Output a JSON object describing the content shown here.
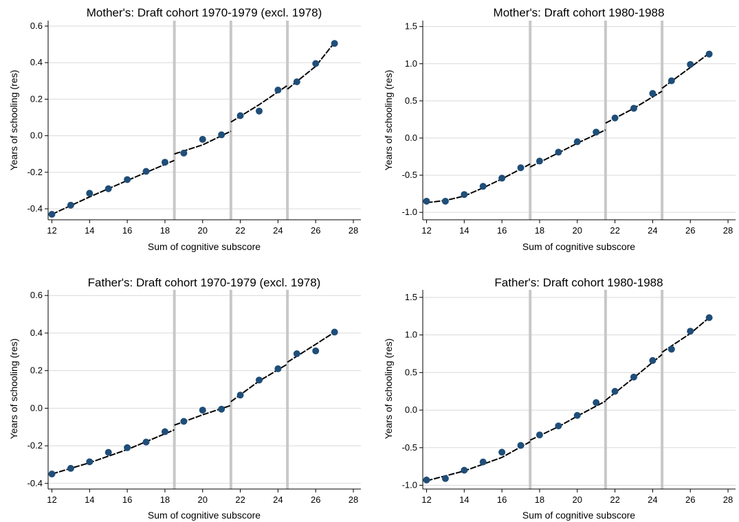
{
  "colors": {
    "marker": "#1f4e79",
    "fit_line": "#000000",
    "cutoff_line": "#c8c8c8",
    "grid": "#d9d9d9"
  },
  "chart_data": [
    {
      "type": "scatter",
      "title": "Mother's: Draft cohort 1970-1979 (excl. 1978)",
      "xlabel": "Sum of cognitive subscore",
      "ylabel": "Years of schooling (res)",
      "xlim": [
        11.8,
        28.4
      ],
      "ylim": [
        -0.46,
        0.63
      ],
      "xticks": [
        12,
        14,
        16,
        18,
        20,
        22,
        24,
        26,
        28
      ],
      "yticks": [
        -0.4,
        -0.2,
        0.0,
        0.2,
        0.4,
        0.6
      ],
      "ytick_labels": [
        "-0.4",
        "-0.2",
        "0.0",
        "0.2",
        "0.4",
        "0.6"
      ],
      "cutoffs": [
        18.5,
        21.5,
        24.5
      ],
      "grid": true,
      "x": [
        12,
        13,
        14,
        15,
        16,
        17,
        18,
        19,
        20,
        21,
        22,
        23,
        24,
        25,
        26,
        27
      ],
      "y": [
        -0.43,
        -0.38,
        -0.315,
        -0.29,
        -0.24,
        -0.195,
        -0.145,
        -0.095,
        -0.02,
        0.005,
        0.11,
        0.135,
        0.25,
        0.295,
        0.395,
        0.505
      ],
      "fit_segments": [
        [
          [
            12,
            -0.43
          ],
          [
            14,
            -0.335
          ],
          [
            16,
            -0.245
          ],
          [
            18.5,
            -0.135
          ]
        ],
        [
          [
            18.5,
            -0.1
          ],
          [
            20,
            -0.05
          ],
          [
            21.5,
            0.025
          ]
        ],
        [
          [
            21.5,
            0.075
          ],
          [
            23,
            0.17
          ],
          [
            24.5,
            0.275
          ]
        ],
        [
          [
            24.5,
            0.255
          ],
          [
            26,
            0.38
          ],
          [
            27,
            0.51
          ]
        ]
      ]
    },
    {
      "type": "scatter",
      "title": "Mother's: Draft cohort 1980-1988",
      "xlabel": "Sum of cognitive subscore",
      "ylabel": "Years of schooling (res)",
      "xlim": [
        11.8,
        28.4
      ],
      "ylim": [
        -1.1,
        1.58
      ],
      "xticks": [
        12,
        14,
        16,
        18,
        20,
        22,
        24,
        26,
        28
      ],
      "yticks": [
        -1.0,
        -0.5,
        0.0,
        0.5,
        1.0,
        1.5
      ],
      "ytick_labels": [
        "-1.0",
        "-0.5",
        "0.0",
        "0.5",
        "1.0",
        "1.5"
      ],
      "cutoffs": [
        17.5,
        21.5,
        24.5
      ],
      "grid": true,
      "x": [
        12,
        13,
        14,
        15,
        16,
        17,
        18,
        19,
        20,
        21,
        22,
        23,
        24,
        25,
        26,
        27
      ],
      "y": [
        -0.85,
        -0.85,
        -0.76,
        -0.65,
        -0.54,
        -0.4,
        -0.31,
        -0.19,
        -0.05,
        0.08,
        0.27,
        0.4,
        0.6,
        0.77,
        0.99,
        1.13
      ],
      "fit_segments": [
        [
          [
            12,
            -0.87
          ],
          [
            13,
            -0.84
          ],
          [
            14,
            -0.78
          ],
          [
            15,
            -0.67
          ],
          [
            16,
            -0.55
          ],
          [
            17.5,
            -0.35
          ]
        ],
        [
          [
            17.5,
            -0.39
          ],
          [
            19,
            -0.2
          ],
          [
            20,
            -0.07
          ],
          [
            21.5,
            0.11
          ]
        ],
        [
          [
            21.5,
            0.2
          ],
          [
            23,
            0.4
          ],
          [
            24.5,
            0.63
          ]
        ],
        [
          [
            24.5,
            0.67
          ],
          [
            26,
            0.95
          ],
          [
            27,
            1.14
          ]
        ]
      ]
    },
    {
      "type": "scatter",
      "title": "Father's: Draft cohort 1970-1979 (excl. 1978)",
      "xlabel": "Sum of cognitive subscore",
      "ylabel": "Years of schooling (res)",
      "xlim": [
        11.8,
        28.4
      ],
      "ylim": [
        -0.43,
        0.63
      ],
      "xticks": [
        12,
        14,
        16,
        18,
        20,
        22,
        24,
        26,
        28
      ],
      "yticks": [
        -0.4,
        -0.2,
        0.0,
        0.2,
        0.4,
        0.6
      ],
      "ytick_labels": [
        "-0.4",
        "-0.2",
        "0.0",
        "0.2",
        "0.4",
        "0.6"
      ],
      "cutoffs": [
        18.5,
        21.5,
        24.5
      ],
      "grid": true,
      "x": [
        12,
        13,
        14,
        15,
        16,
        17,
        18,
        19,
        20,
        21,
        22,
        23,
        24,
        25,
        26,
        27
      ],
      "y": [
        -0.35,
        -0.32,
        -0.285,
        -0.235,
        -0.21,
        -0.18,
        -0.125,
        -0.07,
        -0.01,
        -0.005,
        0.07,
        0.15,
        0.21,
        0.29,
        0.305,
        0.405
      ],
      "fit_segments": [
        [
          [
            12,
            -0.35
          ],
          [
            14,
            -0.29
          ],
          [
            16,
            -0.22
          ],
          [
            18.5,
            -0.115
          ]
        ],
        [
          [
            18.5,
            -0.09
          ],
          [
            20,
            -0.035
          ],
          [
            21.5,
            0.015
          ]
        ],
        [
          [
            21.5,
            0.035
          ],
          [
            23,
            0.145
          ],
          [
            24.5,
            0.235
          ]
        ],
        [
          [
            24.5,
            0.245
          ],
          [
            26,
            0.34
          ],
          [
            27,
            0.405
          ]
        ]
      ]
    },
    {
      "type": "scatter",
      "title": "Father's: Draft cohort 1980-1988",
      "xlabel": "Sum of cognitive subscore",
      "ylabel": "Years of schooling (res)",
      "xlim": [
        11.8,
        28.4
      ],
      "ylim": [
        -1.05,
        1.6
      ],
      "xticks": [
        12,
        14,
        16,
        18,
        20,
        22,
        24,
        26,
        28
      ],
      "yticks": [
        -1.0,
        -0.5,
        0.0,
        0.5,
        1.0,
        1.5
      ],
      "ytick_labels": [
        "-1.0",
        "-0.5",
        "0.0",
        "0.5",
        "1.0",
        "1.5"
      ],
      "cutoffs": [
        17.5,
        21.5,
        24.5
      ],
      "grid": true,
      "x": [
        12,
        13,
        14,
        15,
        16,
        17,
        18,
        19,
        20,
        21,
        22,
        23,
        24,
        25,
        26,
        27
      ],
      "y": [
        -0.93,
        -0.91,
        -0.8,
        -0.69,
        -0.56,
        -0.47,
        -0.33,
        -0.21,
        -0.07,
        0.1,
        0.25,
        0.44,
        0.66,
        0.81,
        1.05,
        1.23
      ],
      "fit_segments": [
        [
          [
            12,
            -0.94
          ],
          [
            14,
            -0.81
          ],
          [
            16,
            -0.63
          ],
          [
            17.5,
            -0.42
          ]
        ],
        [
          [
            17.5,
            -0.4
          ],
          [
            19,
            -0.22
          ],
          [
            20,
            -0.08
          ],
          [
            21.5,
            0.12
          ]
        ],
        [
          [
            21.5,
            0.13
          ],
          [
            23,
            0.43
          ],
          [
            24.5,
            0.74
          ]
        ],
        [
          [
            24.5,
            0.77
          ],
          [
            26,
            1.02
          ],
          [
            27,
            1.23
          ]
        ]
      ]
    }
  ]
}
